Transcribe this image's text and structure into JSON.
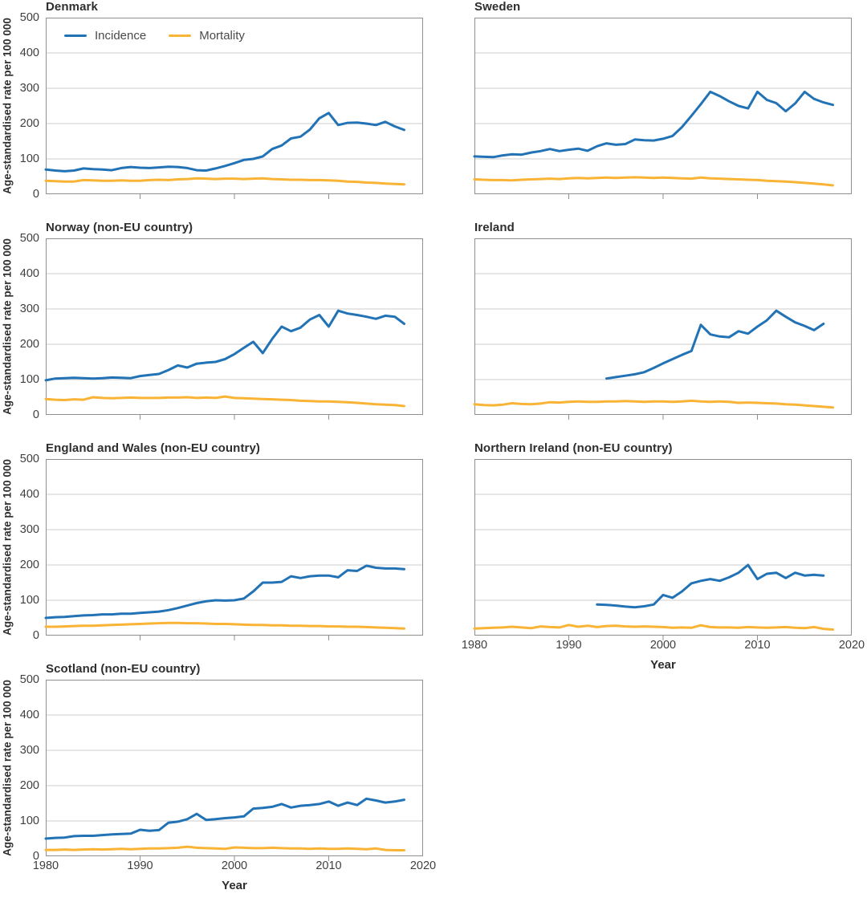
{
  "chart_data": {
    "type": "line",
    "xlabel": "Year",
    "ylabel": "Age-standardised rate per 100 000",
    "xlim": [
      1980,
      2020
    ],
    "ylim": [
      0,
      500
    ],
    "x_ticks": [
      1980,
      1990,
      2000,
      2010,
      2020
    ],
    "y_ticks": [
      0,
      100,
      200,
      300,
      400,
      500
    ],
    "grid": "horizontal",
    "colors": {
      "incidence": "#2273B6",
      "mortality": "#F9B335",
      "grid": "#CDCDCD",
      "frame": "#8F8F8F",
      "text": "#3F3F3F"
    },
    "legend": {
      "position": "top-left-of-first-panel",
      "entries": [
        {
          "label": "Incidence",
          "color": "#2273B6"
        },
        {
          "label": "Mortality",
          "color": "#F9B335"
        }
      ]
    },
    "panels": [
      {
        "id": "denmark",
        "title": "Denmark",
        "series": [
          {
            "name": "Incidence",
            "start_year": 1980,
            "values": [
              70,
              67,
              65,
              67,
              73,
              71,
              70,
              68,
              74,
              77,
              75,
              74,
              76,
              78,
              77,
              74,
              68,
              67,
              73,
              80,
              88,
              97,
              100,
              107,
              128,
              138,
              158,
              163,
              183,
              215,
              230,
              196,
              202,
              203,
              200,
              196,
              205,
              192,
              182
            ]
          },
          {
            "name": "Mortality",
            "start_year": 1980,
            "values": [
              38,
              37,
              36,
              36,
              40,
              39,
              38,
              38,
              39,
              38,
              38,
              40,
              41,
              40,
              42,
              43,
              45,
              44,
              43,
              44,
              44,
              43,
              44,
              45,
              43,
              42,
              41,
              41,
              40,
              40,
              39,
              38,
              36,
              35,
              33,
              32,
              30,
              29,
              28
            ]
          }
        ]
      },
      {
        "id": "sweden",
        "title": "Sweden",
        "series": [
          {
            "name": "Incidence",
            "start_year": 1980,
            "values": [
              107,
              106,
              105,
              110,
              113,
              112,
              118,
              122,
              128,
              122,
              126,
              129,
              123,
              136,
              144,
              140,
              142,
              155,
              153,
              152,
              157,
              165,
              190,
              222,
              255,
              290,
              278,
              263,
              250,
              243,
              290,
              267,
              258,
              235,
              257,
              290,
              270,
              260,
              253
            ]
          },
          {
            "name": "Mortality",
            "start_year": 1980,
            "values": [
              42,
              41,
              40,
              40,
              39,
              41,
              42,
              43,
              44,
              43,
              45,
              46,
              45,
              46,
              47,
              46,
              47,
              48,
              47,
              46,
              47,
              46,
              45,
              44,
              47,
              45,
              44,
              43,
              42,
              41,
              40,
              38,
              37,
              36,
              34,
              32,
              30,
              28,
              25
            ]
          }
        ]
      },
      {
        "id": "norway",
        "title": "Norway (non-EU country)",
        "series": [
          {
            "name": "Incidence",
            "start_year": 1980,
            "values": [
              98,
              103,
              104,
              105,
              104,
              103,
              104,
              106,
              105,
              104,
              110,
              113,
              116,
              127,
              140,
              134,
              145,
              148,
              150,
              158,
              172,
              190,
              207,
              175,
              215,
              250,
              237,
              247,
              270,
              283,
              250,
              295,
              287,
              283,
              278,
              272,
              281,
              278,
              258
            ]
          },
          {
            "name": "Mortality",
            "start_year": 1980,
            "values": [
              45,
              43,
              42,
              44,
              43,
              50,
              48,
              47,
              48,
              49,
              48,
              48,
              48,
              49,
              49,
              50,
              48,
              49,
              48,
              52,
              48,
              47,
              46,
              45,
              44,
              43,
              42,
              40,
              39,
              38,
              38,
              37,
              36,
              34,
              32,
              30,
              29,
              28,
              25
            ]
          }
        ]
      },
      {
        "id": "ireland",
        "title": "Ireland",
        "series": [
          {
            "name": "Incidence",
            "start_year": 1994,
            "values": [
              103,
              107,
              111,
              115,
              121,
              133,
              146,
              158,
              170,
              181,
              255,
              228,
              222,
              220,
              237,
              230,
              250,
              268,
              295,
              278,
              262,
              252,
              240,
              258
            ]
          },
          {
            "name": "Mortality",
            "start_year": 1980,
            "values": [
              30,
              28,
              27,
              29,
              33,
              31,
              30,
              32,
              36,
              35,
              37,
              38,
              37,
              37,
              38,
              38,
              39,
              38,
              37,
              38,
              38,
              37,
              38,
              40,
              38,
              37,
              38,
              37,
              34,
              35,
              34,
              33,
              32,
              30,
              29,
              27,
              25,
              23,
              21
            ]
          }
        ]
      },
      {
        "id": "england-wales",
        "title": "England and Wales (non-EU country)",
        "series": [
          {
            "name": "Incidence",
            "start_year": 1980,
            "values": [
              50,
              52,
              53,
              55,
              57,
              58,
              60,
              60,
              62,
              62,
              64,
              66,
              68,
              72,
              78,
              85,
              92,
              97,
              100,
              99,
              100,
              105,
              125,
              150,
              150,
              152,
              168,
              163,
              168,
              170,
              170,
              165,
              185,
              183,
              198,
              192,
              190,
              190,
              188
            ]
          },
          {
            "name": "Mortality",
            "start_year": 1980,
            "values": [
              25,
              25,
              26,
              27,
              28,
              28,
              29,
              30,
              31,
              32,
              33,
              34,
              35,
              36,
              36,
              35,
              35,
              34,
              33,
              33,
              32,
              31,
              30,
              30,
              29,
              29,
              28,
              28,
              27,
              27,
              26,
              26,
              25,
              25,
              24,
              23,
              22,
              21,
              20
            ]
          }
        ]
      },
      {
        "id": "northern-ireland",
        "title": "Northern Ireland (non-EU country)",
        "series": [
          {
            "name": "Incidence",
            "start_year": 1993,
            "values": [
              88,
              87,
              85,
              82,
              80,
              83,
              88,
              115,
              107,
              125,
              148,
              155,
              160,
              155,
              165,
              178,
              200,
              160,
              175,
              178,
              163,
              178,
              170,
              172,
              170
            ]
          },
          {
            "name": "Mortality",
            "start_year": 1980,
            "values": [
              20,
              21,
              22,
              23,
              25,
              23,
              21,
              26,
              24,
              23,
              30,
              25,
              28,
              24,
              27,
              28,
              26,
              25,
              26,
              25,
              24,
              22,
              23,
              22,
              29,
              24,
              23,
              23,
              22,
              24,
              23,
              22,
              23,
              24,
              22,
              21,
              24,
              19,
              17
            ]
          }
        ]
      },
      {
        "id": "scotland",
        "title": "Scotland (non-EU country)",
        "series": [
          {
            "name": "Incidence",
            "start_year": 1980,
            "values": [
              50,
              52,
              53,
              57,
              58,
              58,
              60,
              62,
              63,
              64,
              75,
              72,
              74,
              95,
              98,
              105,
              120,
              103,
              105,
              108,
              110,
              113,
              135,
              137,
              140,
              148,
              138,
              143,
              145,
              148,
              155,
              143,
              152,
              145,
              163,
              158,
              152,
              155,
              160
            ]
          },
          {
            "name": "Mortality",
            "start_year": 1980,
            "values": [
              18,
              18,
              19,
              18,
              19,
              20,
              19,
              20,
              21,
              20,
              21,
              22,
              22,
              23,
              24,
              27,
              24,
              23,
              22,
              21,
              25,
              24,
              23,
              23,
              24,
              23,
              22,
              22,
              21,
              22,
              21,
              21,
              22,
              21,
              20,
              22,
              18,
              17,
              17
            ]
          }
        ]
      }
    ]
  }
}
